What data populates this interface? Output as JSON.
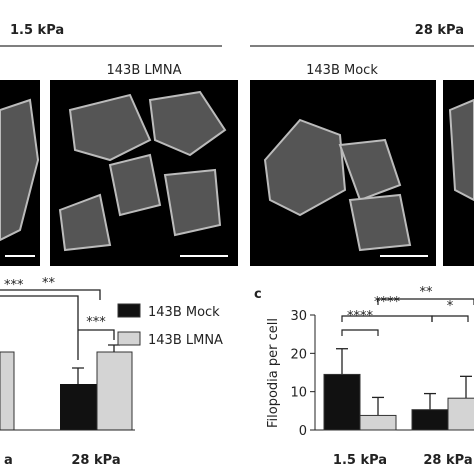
{
  "header": {
    "left_title": "1.5 kPa",
    "right_title": "28 kPa"
  },
  "images": {
    "label_1": "143B LMNA",
    "label_2": "143B Mock"
  },
  "left_panel": {
    "categories": [
      "a",
      "28 kPa"
    ],
    "significance": [
      "***",
      "**",
      "***"
    ]
  },
  "legend": [
    "143B Mock",
    "143B LMNA"
  ],
  "chart_data": {
    "type": "bar",
    "panel": "c",
    "y_label": "Filopodia per cell",
    "categories": [
      "1.5 kPa",
      "28 kPa"
    ],
    "series": [
      {
        "name": "143B Mock",
        "color": "#111111",
        "values": [
          14.5,
          5.3
        ],
        "errors": [
          6.7,
          4.2
        ]
      },
      {
        "name": "143B LMNA",
        "color": "#d4d4d4",
        "values": [
          3.8,
          8.3
        ],
        "errors": [
          4.7,
          5.7
        ]
      }
    ],
    "ylim": [
      0,
      30
    ],
    "yticks": [
      0,
      10,
      20,
      30
    ],
    "significance": [
      "****",
      "****",
      "**",
      "*"
    ]
  }
}
